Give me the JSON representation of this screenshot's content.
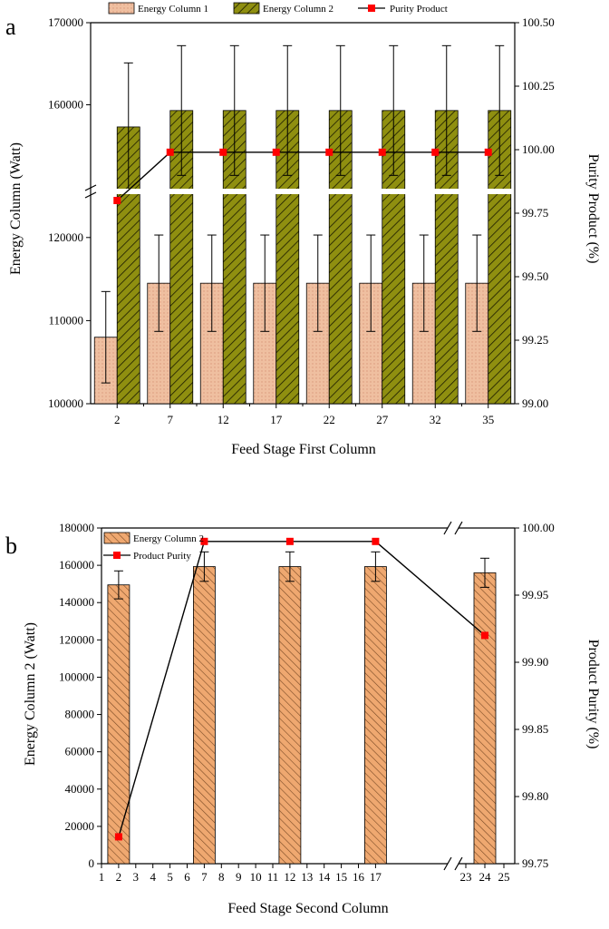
{
  "chart_data": [
    {
      "panel_label": "a",
      "type": "bar",
      "categories": [
        "2",
        "7",
        "12",
        "17",
        "22",
        "27",
        "32",
        "35"
      ],
      "series": [
        {
          "name": "Energy Column 1",
          "values": [
            108000,
            114500,
            114500,
            114500,
            114500,
            114500,
            114500,
            114500
          ],
          "error": [
            5500,
            5800,
            5800,
            5800,
            5800,
            5800,
            5800,
            5800
          ],
          "color": "#efbfa0"
        },
        {
          "name": "Energy Column 2",
          "values": [
            157300,
            159300,
            159300,
            159300,
            159300,
            159300,
            159300,
            159300
          ],
          "error": [
            7800,
            7900,
            7900,
            7900,
            7900,
            7900,
            7900,
            7900
          ],
          "color": "#8f8f10"
        },
        {
          "name": "Purity Product",
          "values": [
            99.8,
            99.99,
            99.99,
            99.99,
            99.99,
            99.99,
            99.99,
            99.99
          ],
          "axis": "right",
          "type": "line",
          "marker_color": "#ff0000"
        }
      ],
      "xlabel": "Feed Stage First Column",
      "ylabel": "Energy Column (Watt)",
      "y2label": "Purity Product (%)",
      "ylim_lower": [
        100000,
        125000
      ],
      "ylim_upper": [
        150000,
        170000
      ],
      "y_ticks": [
        "100000",
        "110000",
        "120000",
        "160000",
        "170000"
      ],
      "y2lim": [
        99.0,
        100.5
      ],
      "y2_ticks": [
        "99.00",
        "99.25",
        "99.50",
        "99.75",
        "100.00",
        "100.25",
        "100.50"
      ],
      "legend": "top"
    },
    {
      "panel_label": "b",
      "type": "bar",
      "x_ticks": [
        "1",
        "2",
        "3",
        "4",
        "5",
        "6",
        "7",
        "8",
        "9",
        "10",
        "11",
        "12",
        "13",
        "14",
        "15",
        "16",
        "17",
        "23",
        "24",
        "25"
      ],
      "series": [
        {
          "name": "Energy Column 2",
          "x": [
            2,
            7,
            12,
            17,
            24
          ],
          "values": [
            149500,
            159300,
            159300,
            159300,
            156000
          ],
          "error": [
            7500,
            7900,
            7900,
            7900,
            7800
          ],
          "color": "#efa870"
        },
        {
          "name": "Product Purity",
          "x": [
            2,
            7,
            12,
            17,
            24
          ],
          "values": [
            99.77,
            99.99,
            99.99,
            99.99,
            99.92
          ],
          "axis": "right",
          "type": "line",
          "marker_color": "#ff0000"
        }
      ],
      "xlabel": "Feed Stage Second Column",
      "ylabel": "Energy Column 2 (Watt)",
      "y2label": "Product Purity (%)",
      "ylim": [
        0,
        180000
      ],
      "y_ticks": [
        "0",
        "20000",
        "40000",
        "60000",
        "80000",
        "100000",
        "120000",
        "140000",
        "160000",
        "180000"
      ],
      "y2lim": [
        99.75,
        100.0
      ],
      "y2_ticks": [
        "99.75",
        "99.80",
        "99.85",
        "99.90",
        "99.95",
        "100.00"
      ],
      "x_break": "between 17 and 23",
      "legend": "top-left"
    }
  ]
}
